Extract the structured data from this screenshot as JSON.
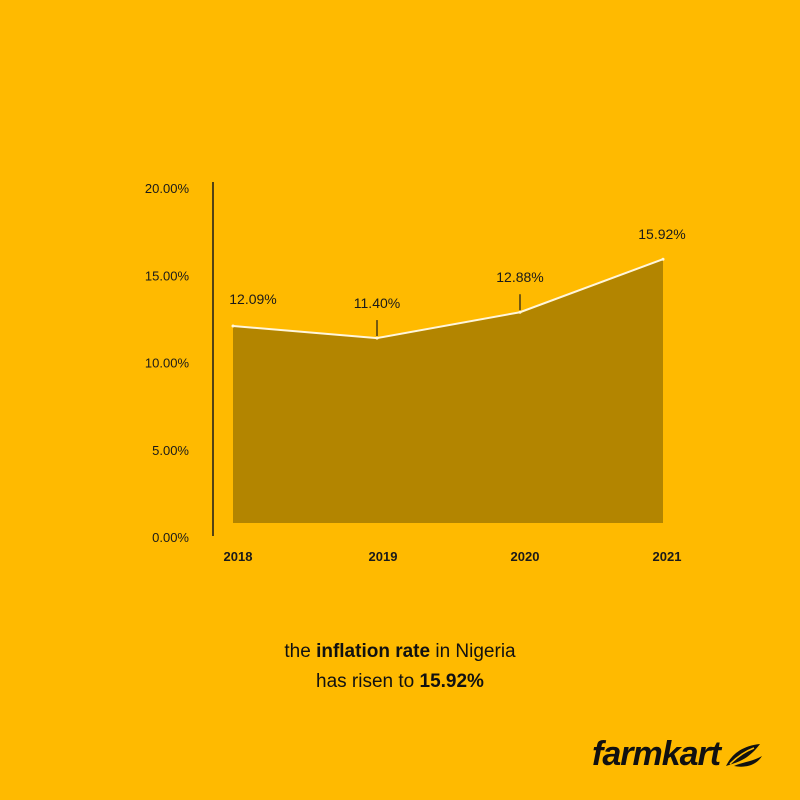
{
  "chart_data": {
    "type": "area",
    "categories": [
      "2018",
      "2019",
      "2020",
      "2021"
    ],
    "values": [
      12.09,
      11.4,
      12.88,
      15.92
    ],
    "data_labels": [
      "12.09%",
      "11.40%",
      "12.88%",
      "15.92%"
    ],
    "y_ticks": [
      "0.00%",
      "5.00%",
      "10.00%",
      "15.00%",
      "20.00%"
    ],
    "ylim": [
      0,
      20
    ],
    "grid": false,
    "title": "",
    "xlabel": "",
    "ylabel": "",
    "colors": {
      "fill": "#B38500",
      "line": "#FFF6DC",
      "background": "#FFBA00"
    }
  },
  "caption": {
    "line1_pre": "the ",
    "line1_bold": "inflation rate",
    "line1_post": " in Nigeria",
    "line2_pre": "has risen to ",
    "line2_bold": "15.92%"
  },
  "brand": {
    "name": "farmkart",
    "icon": "leaf-icon"
  }
}
